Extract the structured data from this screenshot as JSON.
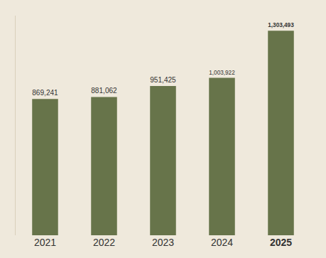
{
  "chart_data": {
    "type": "bar",
    "categories": [
      "2021",
      "2022",
      "2023",
      "2024",
      "2025"
    ],
    "values": [
      869241,
      881062,
      951425,
      1003922,
      1303493
    ],
    "value_labels": [
      "869,241",
      "881,062",
      "951,425",
      "1,003,922",
      "1,303,493"
    ],
    "data_labels": true,
    "color": "#67744a",
    "ylim": [
      0,
      1400000
    ],
    "grid": false,
    "tick_labels": "x"
  }
}
